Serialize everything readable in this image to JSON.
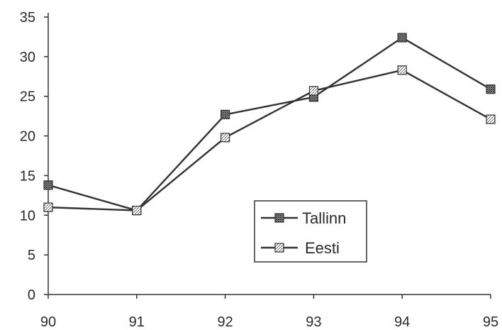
{
  "chart_data": {
    "type": "line",
    "title": "",
    "xlabel": "",
    "ylabel": "",
    "categories": [
      "90",
      "91",
      "92",
      "93",
      "94",
      "95"
    ],
    "ylim": [
      0,
      35
    ],
    "yticks": [
      0,
      5,
      10,
      15,
      20,
      25,
      30,
      35
    ],
    "grid": false,
    "legend_position": "lower-right",
    "series": [
      {
        "name": "Tallinn",
        "values": [
          13.8,
          10.6,
          22.7,
          24.9,
          32.4,
          25.9
        ],
        "marker": "filled-square"
      },
      {
        "name": "Eesti",
        "values": [
          11.0,
          10.6,
          19.8,
          25.7,
          28.3,
          22.1
        ],
        "marker": "hatched-square"
      }
    ]
  },
  "colors": {
    "line": "#333333",
    "background": "#ffffff"
  }
}
